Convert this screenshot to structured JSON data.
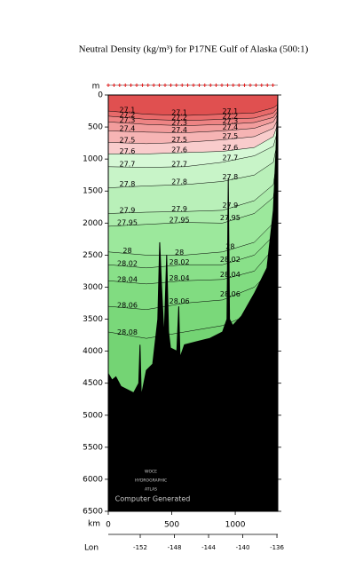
{
  "chart_data": {
    "type": "section",
    "title": "Neutral Density (kg/m³) for P17NE Gulf of Alaska (500:1)",
    "y_label": "m",
    "x_label": "km",
    "x2_label": "Lon",
    "watermark": [
      "WOCE",
      "HYDROGRAPHIC",
      "ATLAS"
    ],
    "credit": "Computer Generated",
    "xlim": [
      0,
      1335
    ],
    "xticks": [
      0,
      500,
      1000
    ],
    "x2lim": [
      -155.74,
      -135.9
    ],
    "x2ticks": [
      -152,
      -148,
      -144,
      -140,
      -136
    ],
    "ylim": [
      6500,
      0
    ],
    "yticks": [
      0,
      500,
      1000,
      1500,
      2000,
      2500,
      3000,
      3500,
      4000,
      4500,
      5000,
      5500,
      6000,
      6500
    ],
    "surface_color": "#e05050",
    "x": [
      0,
      300,
      600,
      900,
      1150,
      1300,
      1335
    ],
    "contours": [
      {
        "level": 27.1,
        "fill": "#e86a6a",
        "depths": [
          250,
          300,
          320,
          300,
          280,
          200,
          150
        ]
      },
      {
        "level": 27.2,
        "fill": "#ee8484",
        "depths": [
          330,
          380,
          400,
          380,
          360,
          280,
          200
        ]
      },
      {
        "level": 27.3,
        "fill": "#f29c9c",
        "depths": [
          420,
          460,
          480,
          460,
          430,
          350,
          250
        ]
      },
      {
        "level": 27.4,
        "fill": "#f6b4b4",
        "depths": [
          560,
          580,
          590,
          560,
          520,
          420,
          300
        ]
      },
      {
        "level": 27.5,
        "fill": "#f9cccc",
        "depths": [
          740,
          760,
          740,
          700,
          650,
          520,
          380
        ]
      },
      {
        "level": 27.6,
        "fill": "#d6f8d6",
        "depths": [
          920,
          920,
          900,
          880,
          820,
          650,
          450
        ]
      },
      {
        "level": 27.7,
        "fill": "#c8f4c8",
        "depths": [
          1120,
          1130,
          1120,
          1050,
          950,
          800,
          550
        ]
      },
      {
        "level": 27.8,
        "fill": "#b9f0b9",
        "depths": [
          1450,
          1420,
          1400,
          1350,
          1250,
          1050,
          700
        ]
      },
      {
        "level": 27.9,
        "fill": "#abecab",
        "depths": [
          1850,
          1830,
          1820,
          1800,
          1650,
          1400,
          900
        ]
      },
      {
        "level": 27.95,
        "fill": "#9ce89c",
        "depths": [
          2050,
          2020,
          1990,
          2000,
          1850,
          1600,
          1050
        ]
      },
      {
        "level": 28,
        "fill": "#92e492",
        "depths": [
          2450,
          2500,
          2500,
          2450,
          2300,
          2000,
          1300
        ]
      },
      {
        "level": 28.02,
        "fill": "#89e089",
        "depths": [
          2650,
          2700,
          2650,
          2650,
          2500,
          2200,
          1500
        ]
      },
      {
        "level": 28.04,
        "fill": "#81dc81",
        "depths": [
          2900,
          2950,
          2900,
          2880,
          2750,
          2400,
          1700
        ]
      },
      {
        "level": 28.06,
        "fill": "#7ad87a",
        "depths": [
          3300,
          3350,
          3250,
          3200,
          3000,
          2700,
          1900
        ]
      },
      {
        "level": 28.08,
        "fill": "#74d474",
        "depths": [
          3700,
          3800,
          3700,
          3600,
          3400,
          3000,
          2100
        ]
      }
    ],
    "bottom": {
      "km": [
        0,
        30,
        60,
        100,
        150,
        200,
        240,
        250,
        260,
        300,
        350,
        390,
        405,
        420,
        440,
        460,
        475,
        490,
        540,
        555,
        565,
        600,
        700,
        800,
        900,
        935,
        945,
        955,
        980,
        1050,
        1150,
        1250,
        1300,
        1320,
        1335
      ],
      "depth": [
        4350,
        4450,
        4400,
        4550,
        4600,
        4650,
        4500,
        3900,
        4700,
        4300,
        4200,
        3500,
        2300,
        3000,
        3800,
        2500,
        3700,
        3950,
        4000,
        3300,
        4100,
        3900,
        3850,
        3800,
        3700,
        3500,
        1300,
        3500,
        3600,
        3450,
        3100,
        2700,
        1800,
        900,
        0
      ]
    }
  }
}
